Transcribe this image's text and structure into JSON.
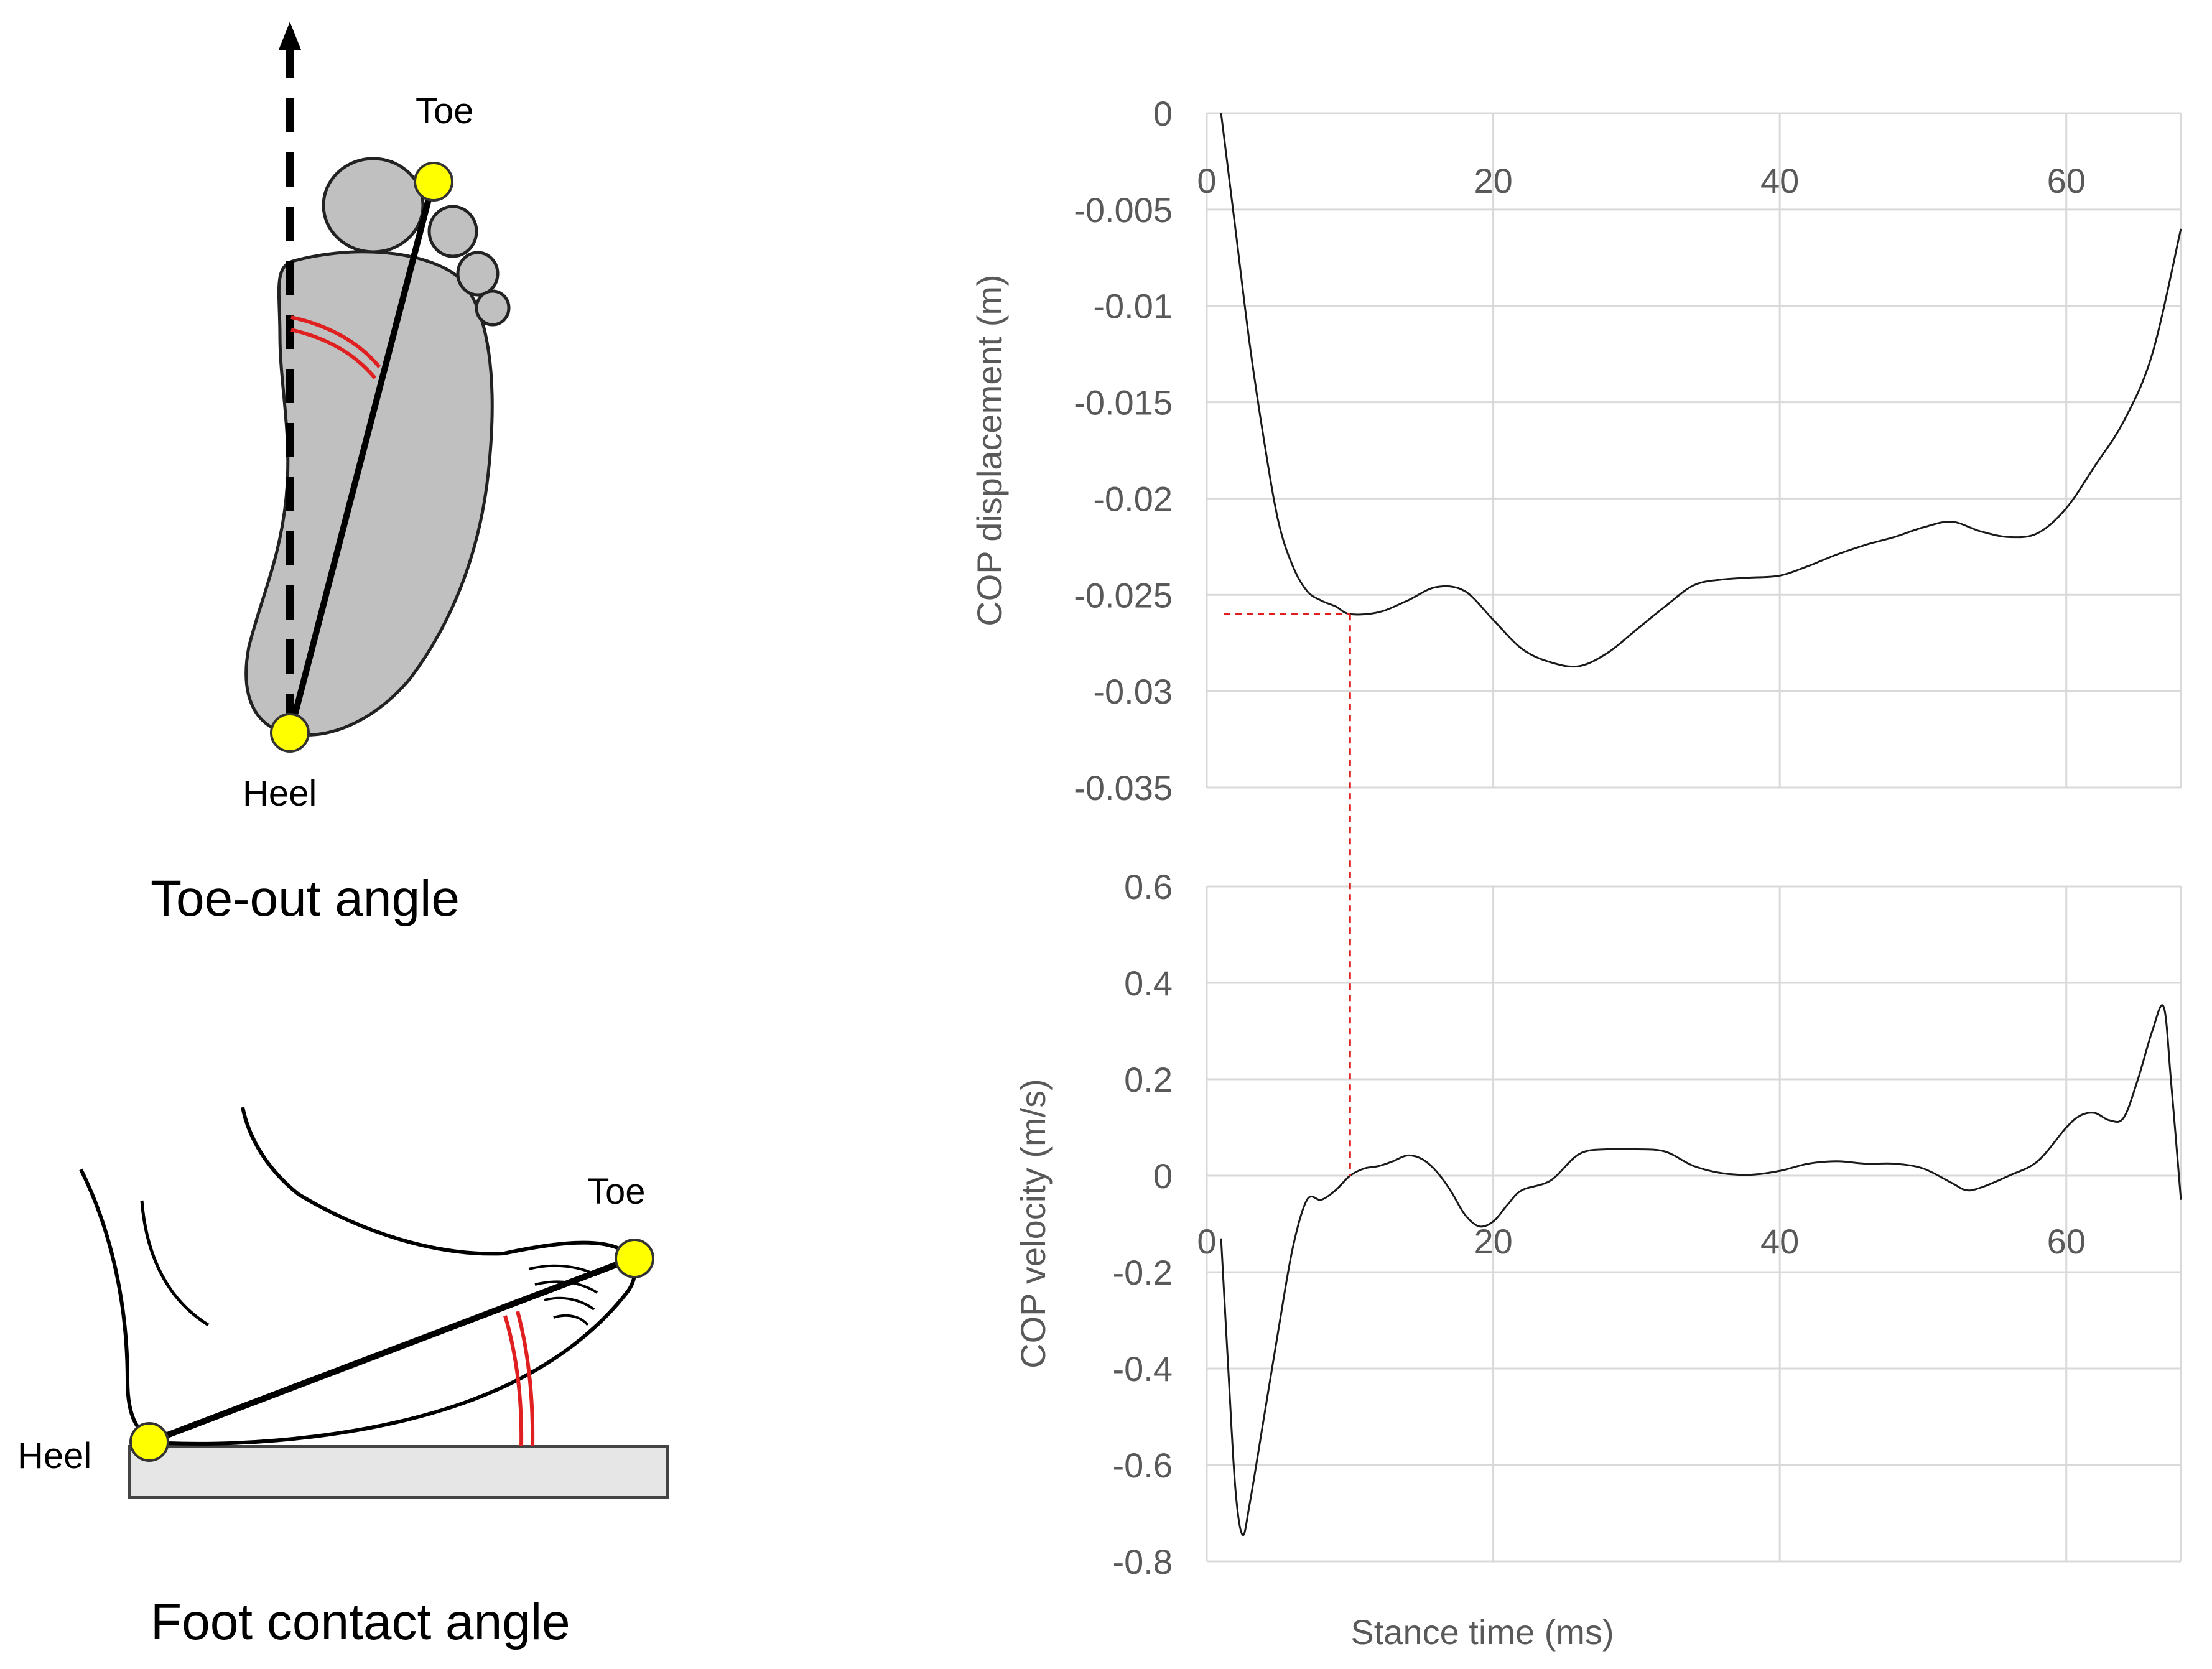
{
  "diagrams": {
    "toe_out": {
      "toe_label": "Toe",
      "heel_label": "Heel",
      "caption": "Toe-out angle"
    },
    "foot_contact": {
      "toe_label": "Toe",
      "heel_label": "Heel",
      "caption": "Foot contact angle"
    }
  },
  "colors": {
    "marker": "#ffff00",
    "angle_arc": "#e02020",
    "foot_fill": "#c0c0c0",
    "grid": "#d9d9d9",
    "series": "#1a1a1a",
    "reference_line": "#e02020"
  },
  "chart_data": [
    {
      "type": "line",
      "title": "",
      "xlabel": "",
      "ylabel": "COP displacement  (m)",
      "xlim": [
        0,
        68
      ],
      "ylim": [
        -0.035,
        0
      ],
      "xticks": [
        0,
        20,
        40,
        60
      ],
      "xtick_labels": [
        "0",
        "20",
        "40",
        "60"
      ],
      "yticks": [
        0,
        -0.005,
        -0.01,
        -0.015,
        -0.02,
        -0.025,
        -0.03,
        -0.035
      ],
      "ytick_labels": [
        "0",
        "-0.005",
        "-0.01",
        "-0.015",
        "-0.02",
        "-0.025",
        "-0.03",
        "-0.035"
      ],
      "grid": true,
      "series": [
        {
          "name": "COP displacement",
          "x": [
            1,
            2,
            3,
            4,
            5,
            6,
            7,
            8,
            9,
            10,
            12,
            14,
            16,
            18,
            20,
            22,
            24,
            26,
            28,
            30,
            32,
            34,
            36,
            38,
            40,
            42,
            44,
            46,
            48,
            50,
            52,
            54,
            56,
            58,
            60,
            62,
            64,
            66,
            68
          ],
          "y": [
            0,
            -0.006,
            -0.012,
            -0.017,
            -0.0212,
            -0.0235,
            -0.0248,
            -0.0253,
            -0.0256,
            -0.026,
            -0.0259,
            -0.0253,
            -0.0246,
            -0.0248,
            -0.0263,
            -0.0278,
            -0.0285,
            -0.0287,
            -0.028,
            -0.0268,
            -0.0256,
            -0.0245,
            -0.0242,
            -0.0241,
            -0.024,
            -0.0235,
            -0.0229,
            -0.0224,
            -0.022,
            -0.0215,
            -0.0212,
            -0.0217,
            -0.022,
            -0.0218,
            -0.0205,
            -0.0183,
            -0.016,
            -0.0125,
            -0.006
          ]
        }
      ],
      "reference": {
        "x": 10,
        "y": -0.026
      }
    },
    {
      "type": "line",
      "title": "",
      "xlabel": "Stance time (ms)",
      "ylabel": "COP velocity (m/s)",
      "xlim": [
        0,
        68
      ],
      "ylim": [
        -0.8,
        0.6
      ],
      "xticks": [
        0,
        20,
        40,
        60
      ],
      "xtick_labels": [
        "0",
        "20",
        "40",
        "60"
      ],
      "yticks": [
        0.6,
        0.4,
        0.2,
        0,
        -0.2,
        -0.4,
        -0.6,
        -0.8
      ],
      "ytick_labels": [
        "0.6",
        "0.4",
        "0.2",
        "0",
        "-0.2",
        "-0.4",
        "-0.6",
        "-0.8"
      ],
      "grid": true,
      "series": [
        {
          "name": "COP velocity",
          "x": [
            1,
            1.5,
            2,
            2.5,
            3,
            4,
            5,
            6,
            7,
            8,
            9,
            10,
            11,
            12,
            13,
            14,
            15,
            16,
            17,
            18,
            19,
            20,
            21,
            22,
            24,
            26,
            28,
            30,
            32,
            34,
            36,
            38,
            40,
            42,
            44,
            46,
            48,
            50,
            52,
            53,
            54,
            56,
            58,
            60,
            61,
            62,
            63,
            64,
            65,
            66,
            66.8,
            67.3,
            68
          ],
          "y": [
            -0.13,
            -0.4,
            -0.65,
            -0.745,
            -0.68,
            -0.5,
            -0.32,
            -0.15,
            -0.05,
            -0.05,
            -0.03,
            0,
            0.015,
            0.02,
            0.03,
            0.042,
            0.035,
            0.01,
            -0.03,
            -0.08,
            -0.105,
            -0.095,
            -0.06,
            -0.03,
            -0.01,
            0.045,
            0.055,
            0.055,
            0.05,
            0.02,
            0.005,
            0.002,
            0.01,
            0.025,
            0.03,
            0.025,
            0.025,
            0.015,
            -0.015,
            -0.03,
            -0.025,
            0.0,
            0.03,
            0.1,
            0.125,
            0.13,
            0.115,
            0.12,
            0.2,
            0.3,
            0.35,
            0.2,
            -0.05
          ]
        }
      ],
      "reference": {
        "x": 10,
        "y": 0
      }
    }
  ]
}
